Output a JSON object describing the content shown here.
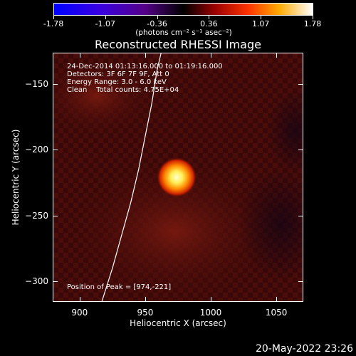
{
  "colorbar": {
    "tick_labels": [
      "-1.78",
      "-1.07",
      "-0.36",
      "0.36",
      "1.07",
      "1.78"
    ],
    "units": "(photons cm⁻² s⁻¹ asec⁻²)"
  },
  "annotations": {
    "time_range": "24-Dec-2014 01:13:16.000 to 01:19:16.000",
    "detectors": "Detectors: 3F 6F 7F 9F, Att 0",
    "energy": "Energy Range: 3.0 - 6.0 keV",
    "algorithm": "Clean    Total counts: 4.75E+04",
    "peak": "Position of Peak = [974,-221]"
  },
  "timestamp": "20-May-2022 23:26",
  "chart_data": {
    "type": "heatmap",
    "title": "Reconstructed RHESSI Image",
    "xlabel": "Heliocentric X (arcsec)",
    "ylabel": "Heliocentric Y (arcsec)",
    "xlim": [
      880,
      1070
    ],
    "ylim": [
      -315,
      -127
    ],
    "x_ticks": [
      900,
      950,
      1000,
      1050
    ],
    "y_ticks": [
      -150,
      -200,
      -250,
      -300
    ],
    "colorbar_range": [
      -1.78,
      1.78
    ],
    "colormap": "red-temperature",
    "peak": {
      "x": 974,
      "y": -221
    },
    "limb_curve": [
      [
        917,
        -315
      ],
      [
        925,
        -290
      ],
      [
        932,
        -265
      ],
      [
        939,
        -240
      ],
      [
        945,
        -215
      ],
      [
        950,
        -190
      ],
      [
        955,
        -165
      ],
      [
        959,
        -140
      ],
      [
        962,
        -127
      ]
    ],
    "colors": {
      "low": "#0000ff",
      "mid": "#000000",
      "high": "#ffffff"
    }
  }
}
